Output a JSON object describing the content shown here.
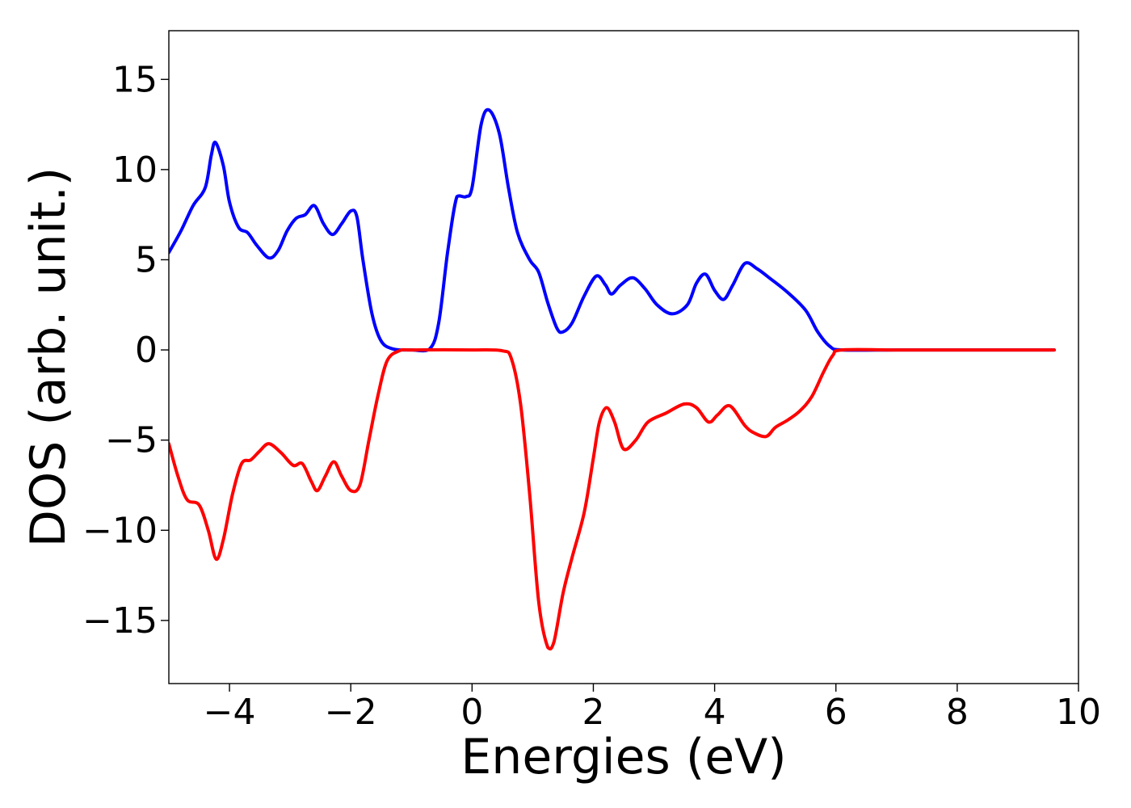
{
  "chart_data": {
    "type": "line",
    "xlabel": "Energies (eV)",
    "ylabel": "DOS (arb. unit.)",
    "xlim": [
      -5,
      10
    ],
    "ylim": [
      -18.5,
      17.7
    ],
    "grid": false,
    "x_ticks": [
      {
        "value": -4,
        "label": "−4"
      },
      {
        "value": -2,
        "label": "−2"
      },
      {
        "value": 0,
        "label": "0"
      },
      {
        "value": 2,
        "label": "2"
      },
      {
        "value": 4,
        "label": "4"
      },
      {
        "value": 6,
        "label": "6"
      },
      {
        "value": 8,
        "label": "8"
      },
      {
        "value": 10,
        "label": "10"
      }
    ],
    "y_ticks": [
      {
        "value": -15,
        "label": "−15"
      },
      {
        "value": -10,
        "label": "−10"
      },
      {
        "value": -5,
        "label": "−5"
      },
      {
        "value": 0,
        "label": "0"
      },
      {
        "value": 5,
        "label": "5"
      },
      {
        "value": 10,
        "label": "10"
      },
      {
        "value": 15,
        "label": "15"
      }
    ],
    "series": [
      {
        "color": "#0000ff",
        "points": [
          [
            -5.0,
            5.4
          ],
          [
            -4.8,
            6.6
          ],
          [
            -4.6,
            8.0
          ],
          [
            -4.4,
            9.0
          ],
          [
            -4.3,
            10.8
          ],
          [
            -4.23,
            11.5
          ],
          [
            -4.1,
            10.2
          ],
          [
            -4.0,
            8.2
          ],
          [
            -3.85,
            6.8
          ],
          [
            -3.7,
            6.5
          ],
          [
            -3.55,
            5.8
          ],
          [
            -3.35,
            5.1
          ],
          [
            -3.2,
            5.5
          ],
          [
            -3.05,
            6.6
          ],
          [
            -2.9,
            7.3
          ],
          [
            -2.75,
            7.5
          ],
          [
            -2.6,
            8.0
          ],
          [
            -2.45,
            7.0
          ],
          [
            -2.3,
            6.4
          ],
          [
            -2.15,
            7.0
          ],
          [
            -2.0,
            7.7
          ],
          [
            -1.9,
            7.4
          ],
          [
            -1.8,
            5.0
          ],
          [
            -1.65,
            2.0
          ],
          [
            -1.5,
            0.5
          ],
          [
            -1.3,
            0.05
          ],
          [
            -1.0,
            0.0
          ],
          [
            -0.7,
            0.05
          ],
          [
            -0.55,
            1.5
          ],
          [
            -0.4,
            5.5
          ],
          [
            -0.25,
            8.5
          ],
          [
            -0.1,
            8.5
          ],
          [
            0.0,
            9.0
          ],
          [
            0.15,
            12.5
          ],
          [
            0.28,
            13.3
          ],
          [
            0.45,
            12.0
          ],
          [
            0.6,
            9.0
          ],
          [
            0.75,
            6.5
          ],
          [
            0.95,
            5.0
          ],
          [
            1.1,
            4.3
          ],
          [
            1.25,
            2.6
          ],
          [
            1.4,
            1.2
          ],
          [
            1.5,
            1.0
          ],
          [
            1.65,
            1.5
          ],
          [
            1.85,
            3.0
          ],
          [
            2.05,
            4.1
          ],
          [
            2.2,
            3.6
          ],
          [
            2.3,
            3.1
          ],
          [
            2.45,
            3.6
          ],
          [
            2.65,
            4.0
          ],
          [
            2.85,
            3.4
          ],
          [
            3.05,
            2.5
          ],
          [
            3.3,
            2.0
          ],
          [
            3.55,
            2.5
          ],
          [
            3.7,
            3.7
          ],
          [
            3.85,
            4.2
          ],
          [
            4.0,
            3.3
          ],
          [
            4.15,
            2.8
          ],
          [
            4.3,
            3.6
          ],
          [
            4.5,
            4.8
          ],
          [
            4.7,
            4.5
          ],
          [
            4.9,
            4.0
          ],
          [
            5.2,
            3.2
          ],
          [
            5.5,
            2.2
          ],
          [
            5.7,
            1.0
          ],
          [
            5.9,
            0.2
          ],
          [
            6.1,
            0.0
          ],
          [
            7.0,
            0.0
          ],
          [
            8.0,
            0.0
          ],
          [
            9.0,
            0.0
          ],
          [
            9.6,
            0.0
          ]
        ]
      },
      {
        "color": "#ff0000",
        "points": [
          [
            -5.0,
            -5.2
          ],
          [
            -4.85,
            -7.0
          ],
          [
            -4.7,
            -8.3
          ],
          [
            -4.5,
            -8.6
          ],
          [
            -4.35,
            -10.0
          ],
          [
            -4.22,
            -11.6
          ],
          [
            -4.1,
            -10.5
          ],
          [
            -3.95,
            -8.0
          ],
          [
            -3.8,
            -6.3
          ],
          [
            -3.65,
            -6.1
          ],
          [
            -3.5,
            -5.6
          ],
          [
            -3.35,
            -5.2
          ],
          [
            -3.15,
            -5.7
          ],
          [
            -2.95,
            -6.4
          ],
          [
            -2.8,
            -6.3
          ],
          [
            -2.65,
            -7.3
          ],
          [
            -2.55,
            -7.8
          ],
          [
            -2.42,
            -7.0
          ],
          [
            -2.28,
            -6.2
          ],
          [
            -2.15,
            -7.0
          ],
          [
            -2.0,
            -7.8
          ],
          [
            -1.85,
            -7.5
          ],
          [
            -1.7,
            -5.0
          ],
          [
            -1.55,
            -2.5
          ],
          [
            -1.4,
            -0.6
          ],
          [
            -1.2,
            -0.05
          ],
          [
            -1.0,
            0.0
          ],
          [
            0.0,
            0.0
          ],
          [
            0.5,
            -0.05
          ],
          [
            0.65,
            -0.5
          ],
          [
            0.8,
            -3.0
          ],
          [
            0.95,
            -8.0
          ],
          [
            1.1,
            -14.0
          ],
          [
            1.25,
            -16.5
          ],
          [
            1.35,
            -16.2
          ],
          [
            1.5,
            -13.5
          ],
          [
            1.65,
            -11.5
          ],
          [
            1.85,
            -9.0
          ],
          [
            2.0,
            -6.0
          ],
          [
            2.1,
            -4.0
          ],
          [
            2.22,
            -3.2
          ],
          [
            2.35,
            -4.0
          ],
          [
            2.5,
            -5.5
          ],
          [
            2.7,
            -5.0
          ],
          [
            2.9,
            -4.0
          ],
          [
            3.2,
            -3.5
          ],
          [
            3.5,
            -3.0
          ],
          [
            3.7,
            -3.2
          ],
          [
            3.9,
            -4.0
          ],
          [
            4.05,
            -3.6
          ],
          [
            4.25,
            -3.1
          ],
          [
            4.5,
            -4.2
          ],
          [
            4.65,
            -4.6
          ],
          [
            4.85,
            -4.8
          ],
          [
            5.0,
            -4.3
          ],
          [
            5.2,
            -3.9
          ],
          [
            5.4,
            -3.4
          ],
          [
            5.6,
            -2.6
          ],
          [
            5.8,
            -1.2
          ],
          [
            5.95,
            -0.3
          ],
          [
            6.1,
            0.0
          ],
          [
            7.0,
            0.0
          ],
          [
            8.0,
            0.0
          ],
          [
            9.0,
            0.0
          ],
          [
            9.6,
            0.0
          ]
        ]
      }
    ]
  }
}
